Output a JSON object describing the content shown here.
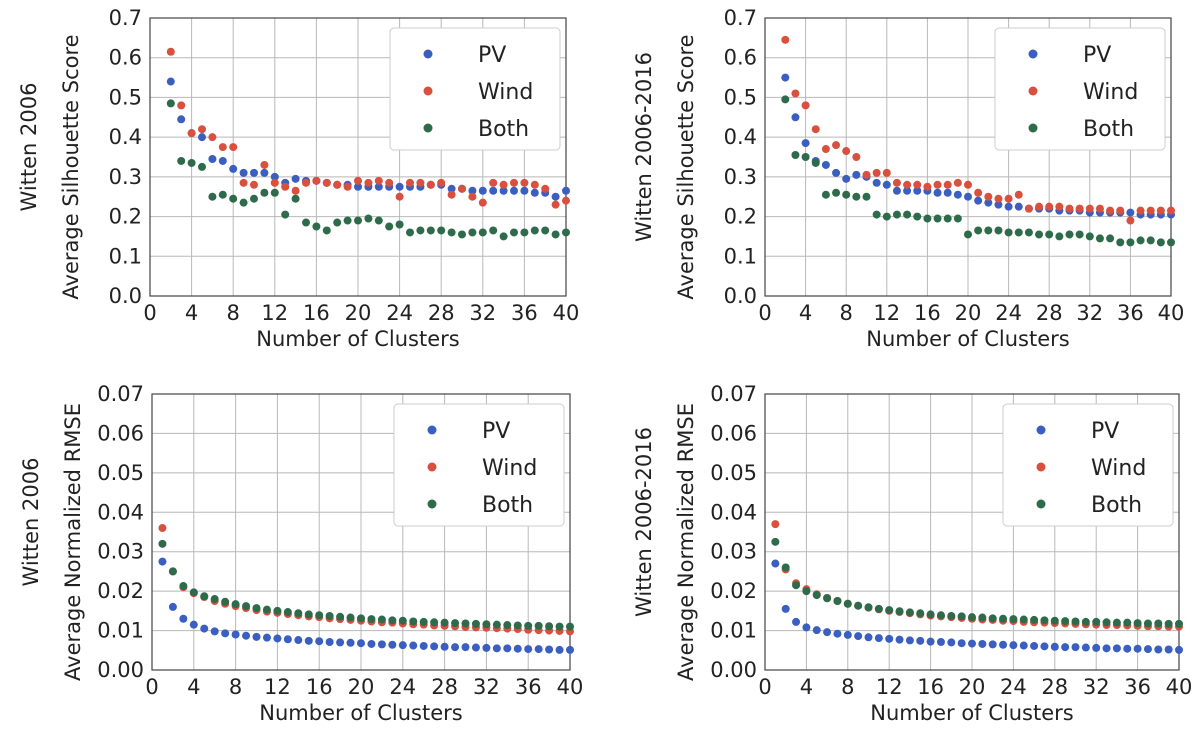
{
  "colors": {
    "PV": "#3a5fc0",
    "Wind": "#d9503f",
    "Both": "#2e6b4a"
  },
  "chart_data": [
    {
      "type": "scatter",
      "panel": "top-left",
      "title": "",
      "xlabel": "Number of Clusters",
      "ylabel_outer": "Witten 2006",
      "ylabel": "Average Silhouette Score",
      "xlim": [
        0,
        40
      ],
      "ylim": [
        0,
        0.7
      ],
      "xticks": [
        0,
        4,
        8,
        12,
        16,
        20,
        24,
        28,
        32,
        36,
        40
      ],
      "yticks": [
        "0.0",
        "0.1",
        "0.2",
        "0.3",
        "0.4",
        "0.5",
        "0.6",
        "0.7"
      ],
      "legend_position": "top-right",
      "x": [
        2,
        3,
        4,
        5,
        6,
        7,
        8,
        9,
        10,
        11,
        12,
        13,
        14,
        15,
        16,
        17,
        18,
        19,
        20,
        21,
        22,
        23,
        24,
        25,
        26,
        27,
        28,
        29,
        30,
        31,
        32,
        33,
        34,
        35,
        36,
        37,
        38,
        39,
        40
      ],
      "series": [
        {
          "name": "PV",
          "values": [
            0.54,
            0.445,
            0.41,
            0.4,
            0.345,
            0.34,
            0.32,
            0.31,
            0.31,
            0.31,
            0.3,
            0.285,
            0.295,
            0.29,
            0.29,
            0.285,
            0.28,
            0.28,
            0.275,
            0.275,
            0.275,
            0.275,
            0.275,
            0.275,
            0.275,
            0.28,
            0.28,
            0.27,
            0.27,
            0.265,
            0.265,
            0.265,
            0.265,
            0.265,
            0.265,
            0.26,
            0.26,
            0.25,
            0.265
          ]
        },
        {
          "name": "Wind",
          "values": [
            0.615,
            0.48,
            0.41,
            0.42,
            0.4,
            0.375,
            0.375,
            0.285,
            0.28,
            0.33,
            0.285,
            0.275,
            0.265,
            0.285,
            0.29,
            0.285,
            0.28,
            0.275,
            0.29,
            0.285,
            0.29,
            0.285,
            0.25,
            0.285,
            0.285,
            0.28,
            0.285,
            0.255,
            0.27,
            0.25,
            0.235,
            0.285,
            0.28,
            0.285,
            0.285,
            0.28,
            0.27,
            0.23,
            0.24
          ]
        },
        {
          "name": "Both",
          "values": [
            0.485,
            0.34,
            0.335,
            0.325,
            0.25,
            0.255,
            0.245,
            0.235,
            0.245,
            0.26,
            0.26,
            0.205,
            0.245,
            0.185,
            0.175,
            0.165,
            0.185,
            0.19,
            0.19,
            0.195,
            0.19,
            0.175,
            0.18,
            0.16,
            0.165,
            0.165,
            0.165,
            0.16,
            0.155,
            0.16,
            0.16,
            0.165,
            0.15,
            0.16,
            0.16,
            0.165,
            0.165,
            0.155,
            0.16
          ]
        }
      ]
    },
    {
      "type": "scatter",
      "panel": "top-right",
      "title": "",
      "xlabel": "Number of Clusters",
      "ylabel_outer": "Witten 2006-2016",
      "ylabel": "Average Silhouette Score",
      "xlim": [
        0,
        40
      ],
      "ylim": [
        0,
        0.7
      ],
      "xticks": [
        0,
        4,
        8,
        12,
        16,
        20,
        24,
        28,
        32,
        36,
        40
      ],
      "yticks": [
        "0.0",
        "0.1",
        "0.2",
        "0.3",
        "0.4",
        "0.5",
        "0.6",
        "0.7"
      ],
      "legend_position": "top-right",
      "x": [
        2,
        3,
        4,
        5,
        6,
        7,
        8,
        9,
        10,
        11,
        12,
        13,
        14,
        15,
        16,
        17,
        18,
        19,
        20,
        21,
        22,
        23,
        24,
        25,
        26,
        27,
        28,
        29,
        30,
        31,
        32,
        33,
        34,
        35,
        36,
        37,
        38,
        39,
        40
      ],
      "series": [
        {
          "name": "PV",
          "values": [
            0.55,
            0.45,
            0.385,
            0.34,
            0.33,
            0.31,
            0.295,
            0.305,
            0.3,
            0.285,
            0.28,
            0.265,
            0.265,
            0.265,
            0.265,
            0.26,
            0.26,
            0.255,
            0.25,
            0.24,
            0.235,
            0.23,
            0.225,
            0.225,
            0.22,
            0.22,
            0.22,
            0.215,
            0.215,
            0.215,
            0.21,
            0.21,
            0.21,
            0.21,
            0.21,
            0.205,
            0.205,
            0.205,
            0.205
          ]
        },
        {
          "name": "Wind",
          "values": [
            0.645,
            0.51,
            0.48,
            0.42,
            0.37,
            0.38,
            0.365,
            0.35,
            0.305,
            0.31,
            0.31,
            0.285,
            0.28,
            0.28,
            0.275,
            0.28,
            0.28,
            0.285,
            0.28,
            0.26,
            0.25,
            0.245,
            0.245,
            0.255,
            0.22,
            0.225,
            0.225,
            0.225,
            0.22,
            0.22,
            0.22,
            0.22,
            0.215,
            0.215,
            0.19,
            0.215,
            0.215,
            0.215,
            0.215
          ]
        },
        {
          "name": "Both",
          "values": [
            0.495,
            0.355,
            0.35,
            0.335,
            0.255,
            0.26,
            0.255,
            0.25,
            0.25,
            0.205,
            0.2,
            0.205,
            0.205,
            0.2,
            0.195,
            0.195,
            0.195,
            0.195,
            0.155,
            0.165,
            0.165,
            0.165,
            0.16,
            0.16,
            0.16,
            0.155,
            0.155,
            0.15,
            0.155,
            0.155,
            0.15,
            0.145,
            0.145,
            0.135,
            0.135,
            0.14,
            0.14,
            0.135,
            0.135
          ]
        }
      ]
    },
    {
      "type": "scatter",
      "panel": "bottom-left",
      "title": "",
      "xlabel": "Number of Clusters",
      "ylabel_outer": "Witten 2006",
      "ylabel": "Average Normalized RMSE",
      "xlim": [
        0,
        40
      ],
      "ylim": [
        0,
        0.07
      ],
      "xticks": [
        0,
        4,
        8,
        12,
        16,
        20,
        24,
        28,
        32,
        36,
        40
      ],
      "yticks": [
        "0.00",
        "0.01",
        "0.02",
        "0.03",
        "0.04",
        "0.05",
        "0.06",
        "0.07"
      ],
      "legend_position": "top-right",
      "x": [
        1,
        2,
        3,
        4,
        5,
        6,
        7,
        8,
        9,
        10,
        11,
        12,
        13,
        14,
        15,
        16,
        17,
        18,
        19,
        20,
        21,
        22,
        23,
        24,
        25,
        26,
        27,
        28,
        29,
        30,
        31,
        32,
        33,
        34,
        35,
        36,
        37,
        38,
        39,
        40
      ],
      "series": [
        {
          "name": "PV",
          "values": [
            0.0275,
            0.016,
            0.013,
            0.0115,
            0.0105,
            0.0098,
            0.0093,
            0.009,
            0.0087,
            0.0084,
            0.0082,
            0.008,
            0.0078,
            0.0076,
            0.0074,
            0.0073,
            0.0071,
            0.007,
            0.0069,
            0.0068,
            0.0066,
            0.0065,
            0.0064,
            0.0063,
            0.0062,
            0.0061,
            0.006,
            0.0059,
            0.0058,
            0.0058,
            0.0057,
            0.0056,
            0.0055,
            0.0055,
            0.0054,
            0.0053,
            0.0053,
            0.0052,
            0.0051,
            0.0051
          ]
        },
        {
          "name": "Wind",
          "values": [
            0.036,
            0.025,
            0.021,
            0.0195,
            0.0185,
            0.0175,
            0.0168,
            0.0162,
            0.0157,
            0.0152,
            0.0148,
            0.0145,
            0.0142,
            0.0139,
            0.0136,
            0.0134,
            0.0131,
            0.0129,
            0.0127,
            0.0125,
            0.0123,
            0.0121,
            0.012,
            0.0118,
            0.0116,
            0.0115,
            0.0113,
            0.0112,
            0.0111,
            0.0109,
            0.0108,
            0.0107,
            0.0106,
            0.0105,
            0.0104,
            0.0102,
            0.0101,
            0.01,
            0.0099,
            0.0098
          ]
        },
        {
          "name": "Both",
          "values": [
            0.032,
            0.025,
            0.0213,
            0.0197,
            0.0187,
            0.018,
            0.0173,
            0.0167,
            0.0162,
            0.0157,
            0.0153,
            0.015,
            0.0147,
            0.0144,
            0.0141,
            0.0139,
            0.0137,
            0.0135,
            0.0133,
            0.0131,
            0.0129,
            0.0128,
            0.0126,
            0.0125,
            0.0123,
            0.0122,
            0.0121,
            0.012,
            0.0119,
            0.0118,
            0.0117,
            0.0116,
            0.0115,
            0.0114,
            0.0113,
            0.0112,
            0.0112,
            0.0111,
            0.011,
            0.011
          ]
        }
      ]
    },
    {
      "type": "scatter",
      "panel": "bottom-right",
      "title": "",
      "xlabel": "Number of Clusters",
      "ylabel_outer": "Witten 2006-2016",
      "ylabel": "Average Normalized RMSE",
      "xlim": [
        0,
        40
      ],
      "ylim": [
        0,
        0.07
      ],
      "xticks": [
        0,
        4,
        8,
        12,
        16,
        20,
        24,
        28,
        32,
        36,
        40
      ],
      "yticks": [
        "0.00",
        "0.01",
        "0.02",
        "0.03",
        "0.04",
        "0.05",
        "0.06",
        "0.07"
      ],
      "legend_position": "top-right",
      "x": [
        1,
        2,
        3,
        4,
        5,
        6,
        7,
        8,
        9,
        10,
        11,
        12,
        13,
        14,
        15,
        16,
        17,
        18,
        19,
        20,
        21,
        22,
        23,
        24,
        25,
        26,
        27,
        28,
        29,
        30,
        31,
        32,
        33,
        34,
        35,
        36,
        37,
        38,
        39,
        40
      ],
      "series": [
        {
          "name": "PV",
          "values": [
            0.027,
            0.0155,
            0.0122,
            0.0108,
            0.0101,
            0.0096,
            0.0092,
            0.0089,
            0.0086,
            0.0083,
            0.0081,
            0.0079,
            0.0077,
            0.0075,
            0.0074,
            0.0072,
            0.0071,
            0.007,
            0.0068,
            0.0067,
            0.0066,
            0.0065,
            0.0064,
            0.0063,
            0.0062,
            0.0061,
            0.006,
            0.0059,
            0.0058,
            0.0058,
            0.0057,
            0.0056,
            0.0055,
            0.0055,
            0.0054,
            0.0054,
            0.0053,
            0.0052,
            0.0052,
            0.0051
          ]
        },
        {
          "name": "Wind",
          "values": [
            0.037,
            0.0255,
            0.022,
            0.0205,
            0.0192,
            0.0183,
            0.0175,
            0.0168,
            0.0163,
            0.0158,
            0.0154,
            0.015,
            0.0147,
            0.0144,
            0.0141,
            0.0138,
            0.0136,
            0.0134,
            0.0132,
            0.013,
            0.0128,
            0.0127,
            0.0125,
            0.0124,
            0.0122,
            0.0121,
            0.012,
            0.0119,
            0.0118,
            0.0117,
            0.0116,
            0.0115,
            0.0114,
            0.0114,
            0.0113,
            0.0112,
            0.0111,
            0.0111,
            0.011,
            0.011
          ]
        },
        {
          "name": "Both",
          "values": [
            0.0325,
            0.026,
            0.0215,
            0.02,
            0.019,
            0.0182,
            0.0175,
            0.0168,
            0.0163,
            0.0159,
            0.0155,
            0.0152,
            0.0149,
            0.0146,
            0.0144,
            0.0141,
            0.0139,
            0.0137,
            0.0136,
            0.0134,
            0.0133,
            0.0131,
            0.013,
            0.0129,
            0.0128,
            0.0127,
            0.0126,
            0.0125,
            0.0124,
            0.0123,
            0.0122,
            0.0122,
            0.0121,
            0.012,
            0.012,
            0.0119,
            0.0118,
            0.0118,
            0.0117,
            0.0117
          ]
        }
      ]
    }
  ]
}
